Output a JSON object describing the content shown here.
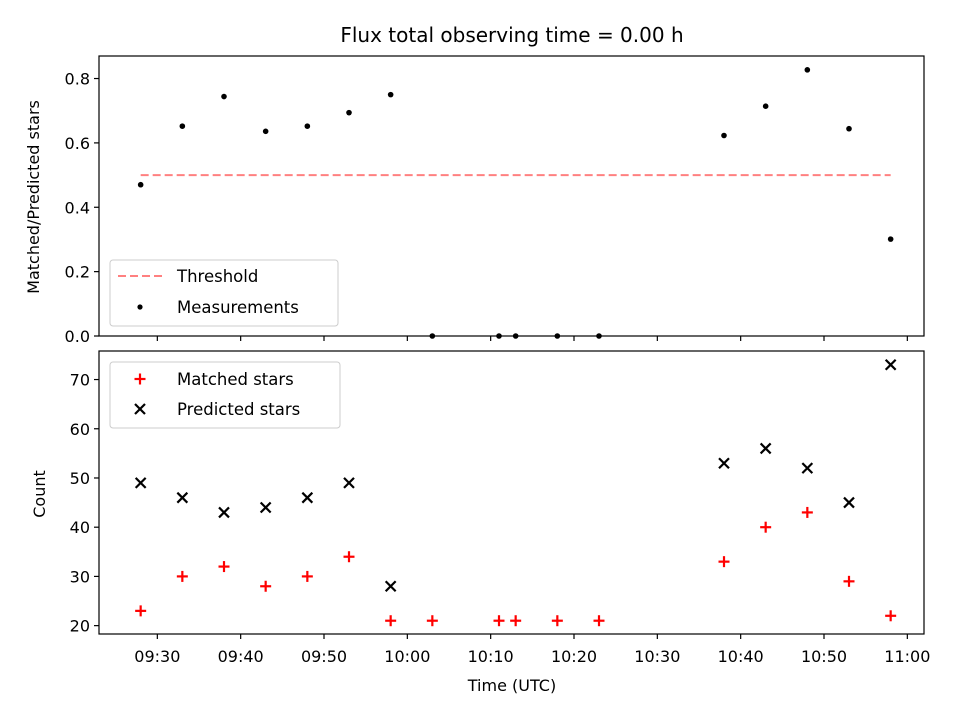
{
  "chart_data": [
    {
      "type": "scatter",
      "title": "Flux total observing time = 0.00 h",
      "ylabel": "Matched/Predicted stars",
      "xlabel": "",
      "ylim": [
        0,
        0.87
      ],
      "yticks": [
        0.0,
        0.2,
        0.4,
        0.6,
        0.8
      ],
      "ytick_labels": [
        "0.0",
        "0.2",
        "0.4",
        "0.6",
        "0.8"
      ],
      "legend_position": "lower-left",
      "grid": false,
      "series": [
        {
          "name": "Threshold",
          "kind": "dashed-line",
          "color": "#ff8080",
          "x": [
            "09:28",
            "10:58"
          ],
          "y": [
            0.5,
            0.5
          ]
        },
        {
          "name": "Measurements",
          "kind": "points",
          "color": "#000000",
          "x": [
            "09:28",
            "09:33",
            "09:38",
            "09:43",
            "09:48",
            "09:53",
            "09:58",
            "10:03",
            "10:11",
            "10:13",
            "10:18",
            "10:23",
            "10:38",
            "10:43",
            "10:48",
            "10:53",
            "10:58"
          ],
          "y": [
            0.47,
            0.652,
            0.744,
            0.636,
            0.652,
            0.694,
            0.75,
            0.0,
            0.0,
            0.0,
            0.0,
            0.0,
            0.623,
            0.714,
            0.827,
            0.644,
            0.301
          ]
        }
      ]
    },
    {
      "type": "scatter",
      "ylabel": "Count",
      "xlabel": "Time (UTC)",
      "xlim": [
        "09:23",
        "11:02"
      ],
      "ylim": [
        18.3,
        75.8
      ],
      "yticks": [
        20,
        30,
        40,
        50,
        60,
        70
      ],
      "ytick_labels": [
        "20",
        "30",
        "40",
        "50",
        "60",
        "70"
      ],
      "xticks": [
        "09:30",
        "09:40",
        "09:50",
        "10:00",
        "10:10",
        "10:20",
        "10:30",
        "10:40",
        "10:50",
        "11:00"
      ],
      "xtick_labels": [
        "09:30",
        "09:40",
        "09:50",
        "10:00",
        "10:10",
        "10:20",
        "10:30",
        "10:40",
        "10:50",
        "11:00"
      ],
      "legend_position": "upper-left",
      "grid": false,
      "series": [
        {
          "name": "Matched stars",
          "marker": "plus",
          "color": "#ff0000",
          "x": [
            "09:28",
            "09:33",
            "09:38",
            "09:43",
            "09:48",
            "09:53",
            "09:58",
            "10:03",
            "10:11",
            "10:13",
            "10:18",
            "10:23",
            "10:38",
            "10:43",
            "10:48",
            "10:53",
            "10:58"
          ],
          "y": [
            23,
            30,
            32,
            28,
            30,
            34,
            21,
            21,
            21,
            21,
            21,
            21,
            33,
            40,
            43,
            29,
            22
          ]
        },
        {
          "name": "Predicted stars",
          "marker": "x",
          "color": "#000000",
          "x": [
            "09:28",
            "09:33",
            "09:38",
            "09:43",
            "09:48",
            "09:53",
            "09:58",
            "10:38",
            "10:43",
            "10:48",
            "10:53",
            "10:58"
          ],
          "y": [
            49,
            46,
            43,
            44,
            46,
            49,
            28,
            53,
            56,
            52,
            45,
            73
          ]
        }
      ]
    }
  ]
}
